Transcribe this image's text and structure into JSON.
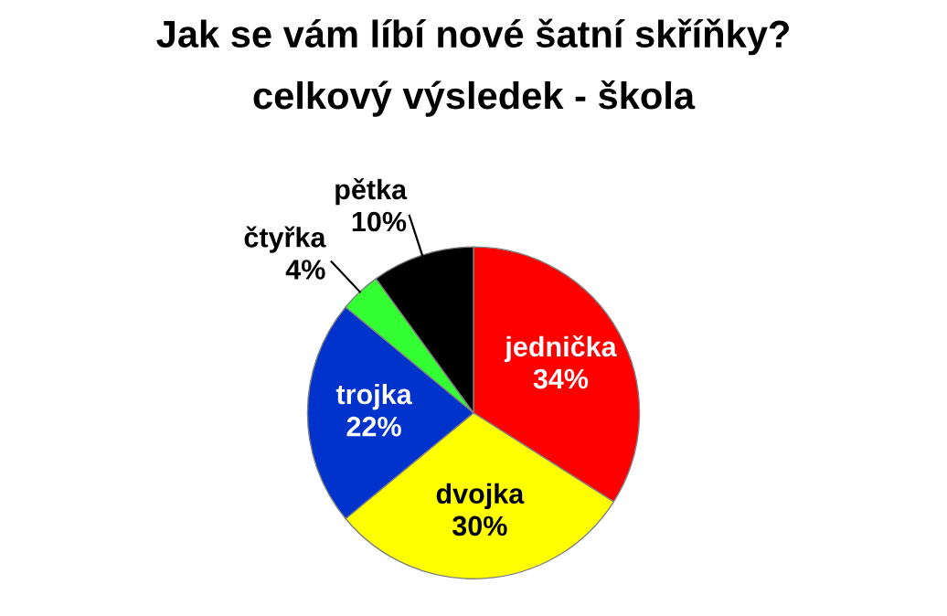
{
  "chart_data": {
    "type": "pie",
    "title": "Jak se vám líbí nové šatní skříňky?",
    "subtitle": "celkový výsledek - škola",
    "categories": [
      "jednička",
      "dvojka",
      "trojka",
      "čtyřka",
      "pětka"
    ],
    "values": [
      34,
      30,
      22,
      4,
      10
    ],
    "value_labels": [
      "34%",
      "30%",
      "22%",
      "4%",
      "10%"
    ],
    "colors": [
      "#ff0000",
      "#ffff00",
      "#0033cc",
      "#33ff33",
      "#000000"
    ],
    "legend": false
  }
}
